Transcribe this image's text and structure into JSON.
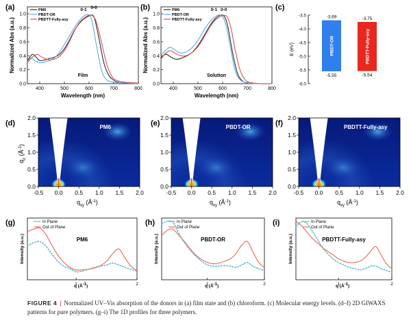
{
  "caption": {
    "label": "FIGURE 4",
    "separator": "|",
    "text": "Normalized UV–Vis absorption of the donors in (a) film state and (b) chloroform. (c) Molecular energy levels. (d–f) 2D GIWAXS patterns for pure polymers. (g–i) The 1D profiles for three polymers."
  },
  "colors": {
    "pm6": "#2b2b2b",
    "pbdt_or": "#5aa9e6",
    "pbdtt": "#d9534f",
    "bar_blue": "#2f80ed",
    "bar_red": "#e8271e",
    "in_plane": "#56c0c9",
    "out_of_plane": "#e8735f",
    "giwaxs_bg": "#03125e"
  },
  "chart_data": [
    {
      "panel": "(a)",
      "type": "line",
      "xlabel": "Wavelength (nm)",
      "ylabel": "Normalized Abs (a.u.)",
      "xlim": [
        350,
        800
      ],
      "ylim": [
        0,
        1.1
      ],
      "xticks": [
        400,
        500,
        600,
        700,
        800
      ],
      "yticks": [
        "0.0",
        "0.2",
        "0.4",
        "0.6",
        "0.8",
        "1.0"
      ],
      "inset_label": "Film",
      "annotations": [
        {
          "text": "0-1",
          "x": 578,
          "y": 1.02
        },
        {
          "text": "0-0",
          "x": 620,
          "y": 1.05
        }
      ],
      "legend": "top-left",
      "series": [
        {
          "name": "PM6",
          "x": [
            350,
            370,
            385,
            400,
            420,
            440,
            460,
            480,
            500,
            520,
            540,
            560,
            580,
            600,
            615,
            625,
            640,
            660,
            680,
            700,
            720,
            750,
            800
          ],
          "y": [
            0.33,
            0.42,
            0.38,
            0.33,
            0.34,
            0.36,
            0.38,
            0.42,
            0.5,
            0.62,
            0.76,
            0.86,
            0.93,
            0.97,
            0.98,
            0.9,
            0.65,
            0.3,
            0.12,
            0.05,
            0.02,
            0.01,
            0.0
          ]
        },
        {
          "name": "PBDT-OR",
          "x": [
            350,
            365,
            380,
            400,
            420,
            440,
            460,
            480,
            500,
            520,
            540,
            560,
            580,
            595,
            605,
            615,
            630,
            650,
            670,
            700,
            750,
            800
          ],
          "y": [
            0.32,
            0.37,
            0.33,
            0.3,
            0.31,
            0.33,
            0.37,
            0.45,
            0.56,
            0.68,
            0.8,
            0.9,
            0.97,
            0.99,
            0.96,
            0.85,
            0.55,
            0.2,
            0.06,
            0.02,
            0.01,
            0.0
          ]
        },
        {
          "name": "PBDTT-Fully-asy",
          "x": [
            350,
            370,
            390,
            400,
            420,
            440,
            460,
            480,
            500,
            520,
            540,
            560,
            580,
            600,
            615,
            630,
            650,
            670,
            690,
            710,
            750,
            800
          ],
          "y": [
            0.3,
            0.38,
            0.42,
            0.4,
            0.36,
            0.34,
            0.35,
            0.39,
            0.47,
            0.6,
            0.75,
            0.87,
            0.94,
            0.98,
            0.97,
            0.88,
            0.6,
            0.3,
            0.12,
            0.05,
            0.02,
            0.01
          ]
        }
      ]
    },
    {
      "panel": "(b)",
      "type": "line",
      "xlabel": "Wavelength (nm)",
      "ylabel": "Normalized Abs (a.u.)",
      "xlim": [
        350,
        800
      ],
      "ylim": [
        0,
        1.1
      ],
      "xticks": [
        400,
        500,
        600,
        700,
        800
      ],
      "yticks": [
        "0.0",
        "0.2",
        "0.4",
        "0.6",
        "0.8",
        "1.0"
      ],
      "inset_label": "Solution",
      "annotations": [
        {
          "text": "0-1",
          "x": 565,
          "y": 1.02
        },
        {
          "text": "0-0",
          "x": 605,
          "y": 1.02
        }
      ],
      "legend": "top-left",
      "series": [
        {
          "name": "PM6",
          "x": [
            350,
            370,
            390,
            410,
            430,
            450,
            470,
            490,
            510,
            530,
            550,
            570,
            590,
            605,
            615,
            625,
            640,
            660,
            680,
            700,
            750,
            800
          ],
          "y": [
            0.37,
            0.42,
            0.38,
            0.35,
            0.36,
            0.39,
            0.43,
            0.5,
            0.6,
            0.72,
            0.84,
            0.93,
            0.98,
            0.97,
            0.9,
            0.75,
            0.45,
            0.15,
            0.04,
            0.01,
            0.0,
            0.0
          ]
        },
        {
          "name": "PBDT-OR",
          "x": [
            350,
            370,
            385,
            400,
            420,
            440,
            460,
            480,
            500,
            520,
            540,
            560,
            580,
            600,
            615,
            630,
            650,
            670,
            700,
            750,
            800
          ],
          "y": [
            0.4,
            0.48,
            0.52,
            0.5,
            0.45,
            0.44,
            0.47,
            0.53,
            0.62,
            0.74,
            0.85,
            0.93,
            0.98,
            0.96,
            0.82,
            0.55,
            0.2,
            0.06,
            0.01,
            0.0,
            0.0
          ]
        },
        {
          "name": "PBDTT-Fully-asy",
          "x": [
            350,
            370,
            390,
            410,
            430,
            450,
            470,
            490,
            510,
            530,
            550,
            570,
            590,
            605,
            620,
            635,
            650,
            670,
            690,
            710,
            750,
            800
          ],
          "y": [
            0.35,
            0.44,
            0.47,
            0.43,
            0.4,
            0.4,
            0.43,
            0.49,
            0.58,
            0.7,
            0.82,
            0.91,
            0.96,
            0.98,
            0.95,
            0.78,
            0.5,
            0.2,
            0.06,
            0.02,
            0.0,
            0.0
          ]
        }
      ]
    },
    {
      "panel": "(c)",
      "type": "bar",
      "ylabel": "E (eV)",
      "ylim": [
        -6.0,
        -3.5
      ],
      "yticks": [
        "-3.5",
        "-4.0",
        "-4.5",
        "-5.0",
        "-5.5",
        "-6.0"
      ],
      "bars": [
        {
          "name": "PBDT-OR",
          "lumo": -3.69,
          "homo": -5.55,
          "lumo_label": "-3.69",
          "homo_label": "-5.55"
        },
        {
          "name": "PBDTT-Fully-asy",
          "lumo": -3.75,
          "homo": -5.54,
          "lumo_label": "-3.75",
          "homo_label": "-5.54"
        }
      ]
    },
    {
      "panel": "(d)",
      "type": "heatmap",
      "title": "PM6",
      "xlabel_main": "q",
      "xlabel_sub": "xy",
      "xlabel_unit": " (Å",
      "xlabel_sup": "-1",
      "xlabel_close": ")",
      "ylabel_main": "q",
      "ylabel_sub": "z",
      "ylabel_unit": " (Å",
      "ylabel_sup": "-1",
      "ylabel_close": ")",
      "xlim": [
        -0.5,
        2.0
      ],
      "ylim": [
        0.0,
        2.0
      ],
      "xticks": [
        "-0.5",
        "0.0",
        "0.5",
        "1.0",
        "1.5",
        "2.0"
      ],
      "yticks": [
        "0.0",
        "0.5",
        "1.0",
        "1.5",
        "2.0"
      ]
    },
    {
      "panel": "(e)",
      "type": "heatmap",
      "title": "PBDT-OR",
      "xlabel_main": "q",
      "xlabel_sub": "xy",
      "xlabel_unit": " (Å",
      "xlabel_sup": "-1",
      "xlabel_close": ")",
      "xlim": [
        -0.5,
        2.0
      ],
      "ylim": [
        0.0,
        2.0
      ],
      "xticks": [
        "-0.5",
        "0.0",
        "0.5",
        "1.0",
        "1.5",
        "2.0"
      ],
      "yticks": [
        "0.0",
        "0.5",
        "1.0",
        "1.5",
        "2.0"
      ]
    },
    {
      "panel": "(f)",
      "type": "heatmap",
      "title": "PBDTT-Fully-asy",
      "xlabel_main": "q",
      "xlabel_sub": "xy",
      "xlabel_unit": " (Å",
      "xlabel_sup": "-1",
      "xlabel_close": ")",
      "xlim": [
        -0.5,
        2.0
      ],
      "ylim": [
        0.0,
        2.0
      ],
      "xticks": [
        "-0.5",
        "0.0",
        "0.5",
        "1.0",
        "1.5",
        "2.0"
      ],
      "yticks": [
        "0.0",
        "0.5",
        "1.0",
        "1.5",
        "2.0"
      ]
    },
    {
      "panel": "(g)",
      "type": "line",
      "title": "PM6",
      "xlabel": "q (Å",
      "xlabel_sup": "-1",
      "xlabel_close": ")",
      "ylabel": "Intensity (a.u.)",
      "xlim": [
        0.2,
        2.0
      ],
      "xticks": [
        "1",
        "2"
      ],
      "legend": "top",
      "series": [
        {
          "name": "In Plane",
          "style": "dotted",
          "x": [
            0.2,
            0.3,
            0.4,
            0.5,
            0.6,
            0.7,
            0.8,
            0.9,
            1.0,
            1.1,
            1.2,
            1.3,
            1.4,
            1.5,
            1.6,
            1.7,
            1.8,
            1.9,
            2.0
          ],
          "y": [
            0.55,
            0.6,
            0.62,
            0.55,
            0.42,
            0.3,
            0.22,
            0.18,
            0.13,
            0.14,
            0.17,
            0.2,
            0.22,
            0.24,
            0.27,
            0.24,
            0.2,
            0.17,
            0.14
          ]
        },
        {
          "name": "Out of Plane",
          "style": "solid",
          "x": [
            0.2,
            0.3,
            0.4,
            0.5,
            0.6,
            0.7,
            0.8,
            0.9,
            1.0,
            1.1,
            1.2,
            1.3,
            1.4,
            1.5,
            1.6,
            1.7,
            1.8,
            1.9,
            2.0
          ],
          "y": [
            0.78,
            0.82,
            0.84,
            0.74,
            0.56,
            0.4,
            0.28,
            0.2,
            0.16,
            0.16,
            0.17,
            0.19,
            0.23,
            0.3,
            0.42,
            0.5,
            0.36,
            0.22,
            0.15
          ]
        }
      ]
    },
    {
      "panel": "(h)",
      "type": "line",
      "title": "PBDT-OR",
      "xlabel": "q (Å",
      "xlabel_sup": "-1",
      "xlabel_close": ")",
      "ylabel": "Intensity (a.u.)",
      "xlim": [
        0.2,
        2.0
      ],
      "xticks": [
        "1",
        "2"
      ],
      "legend": "top",
      "series": [
        {
          "name": "In Plane",
          "style": "dotted",
          "x": [
            0.2,
            0.3,
            0.4,
            0.5,
            0.6,
            0.7,
            0.8,
            0.9,
            1.0,
            1.1,
            1.2,
            1.3,
            1.4,
            1.5,
            1.6,
            1.7,
            1.8,
            1.9,
            2.0
          ],
          "y": [
            0.9,
            0.95,
            0.93,
            0.75,
            0.6,
            0.48,
            0.38,
            0.3,
            0.24,
            0.22,
            0.22,
            0.23,
            0.22,
            0.2,
            0.24,
            0.28,
            0.22,
            0.18,
            0.15
          ]
        },
        {
          "name": "Out of Plane",
          "style": "solid",
          "x": [
            0.2,
            0.3,
            0.4,
            0.5,
            0.6,
            0.7,
            0.8,
            0.9,
            1.0,
            1.1,
            1.2,
            1.3,
            1.4,
            1.5,
            1.6,
            1.7,
            1.8,
            1.9,
            2.0
          ],
          "y": [
            0.72,
            0.8,
            0.82,
            0.72,
            0.62,
            0.5,
            0.4,
            0.33,
            0.28,
            0.26,
            0.27,
            0.3,
            0.34,
            0.42,
            0.56,
            0.62,
            0.45,
            0.28,
            0.2
          ]
        }
      ]
    },
    {
      "panel": "(i)",
      "type": "line",
      "title": "PBDTT-Fully-asy",
      "xlabel": "q (Å",
      "xlabel_sup": "-1",
      "xlabel_close": ")",
      "ylabel": "Intensity (a.u.)",
      "xlim": [
        0.2,
        2.0
      ],
      "xticks": [
        "1",
        "2"
      ],
      "legend": "top",
      "series": [
        {
          "name": "In Plane",
          "style": "dotted",
          "x": [
            0.2,
            0.3,
            0.4,
            0.5,
            0.6,
            0.7,
            0.8,
            0.9,
            1.0,
            1.1,
            1.2,
            1.3,
            1.4,
            1.5,
            1.6,
            1.7,
            1.8,
            1.9,
            2.0
          ],
          "y": [
            0.86,
            0.94,
            0.92,
            0.8,
            0.66,
            0.52,
            0.42,
            0.34,
            0.28,
            0.24,
            0.2,
            0.18,
            0.16,
            0.18,
            0.22,
            0.22,
            0.18,
            0.15,
            0.12
          ]
        },
        {
          "name": "Out of Plane",
          "style": "solid",
          "x": [
            0.2,
            0.3,
            0.4,
            0.5,
            0.6,
            0.7,
            0.8,
            0.9,
            1.0,
            1.1,
            1.2,
            1.3,
            1.4,
            1.5,
            1.6,
            1.7,
            1.8,
            1.9,
            2.0
          ],
          "y": [
            0.95,
            0.88,
            0.78,
            0.68,
            0.6,
            0.52,
            0.46,
            0.4,
            0.34,
            0.3,
            0.28,
            0.28,
            0.3,
            0.36,
            0.46,
            0.54,
            0.4,
            0.26,
            0.18
          ]
        }
      ]
    }
  ]
}
